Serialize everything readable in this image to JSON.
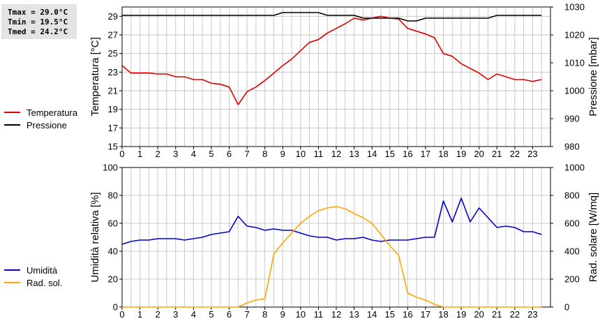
{
  "stats": {
    "tmax": "Tmax = 29.0°C",
    "tmin": "Tmin = 19.5°C",
    "tmed": "Tmed = 24.2°C"
  },
  "colors": {
    "temperatura": "#dd0000",
    "pressione": "#000000",
    "umidita": "#0000cc",
    "radsol": "#ffa500",
    "grid": "#c8c8c8"
  },
  "chart_data": [
    {
      "type": "line",
      "x_ticks": [
        0,
        1,
        2,
        3,
        4,
        5,
        6,
        7,
        8,
        9,
        10,
        11,
        12,
        13,
        14,
        15,
        16,
        17,
        18,
        19,
        20,
        21,
        22,
        23
      ],
      "xlim": [
        0,
        24
      ],
      "y_left": {
        "label": "Temperatura [°C]",
        "ylim": [
          15,
          30
        ],
        "ticks": [
          15,
          17,
          19,
          21,
          23,
          25,
          27,
          29
        ]
      },
      "y_right": {
        "label": "Pressione [mbar]",
        "ylim": [
          980,
          1030
        ],
        "ticks": [
          980,
          990,
          1000,
          1010,
          1020,
          1030
        ]
      },
      "legend": [
        "Temperatura",
        "Pressione"
      ],
      "series": [
        {
          "name": "Temperatura",
          "axis": "left",
          "x": [
            0,
            0.5,
            1,
            1.5,
            2,
            2.5,
            3,
            3.5,
            4,
            4.5,
            5,
            5.5,
            6,
            6.5,
            7,
            7.5,
            8,
            8.5,
            9,
            9.5,
            10,
            10.5,
            11,
            11.5,
            12,
            12.5,
            13,
            13.5,
            14,
            14.5,
            15,
            15.5,
            16,
            16.5,
            17,
            17.5,
            18,
            18.5,
            19,
            19.5,
            20,
            20.5,
            21,
            21.5,
            22,
            22.5,
            23,
            23.5
          ],
          "y": [
            23.7,
            22.9,
            22.9,
            22.9,
            22.8,
            22.8,
            22.5,
            22.5,
            22.2,
            22.2,
            21.8,
            21.7,
            21.4,
            19.5,
            20.9,
            21.4,
            22.1,
            22.9,
            23.7,
            24.4,
            25.3,
            26.2,
            26.5,
            27.2,
            27.7,
            28.2,
            28.8,
            28.6,
            28.8,
            29.0,
            28.8,
            28.7,
            27.7,
            27.4,
            27.1,
            26.7,
            25.0,
            24.7,
            23.9,
            23.4,
            22.9,
            22.2,
            22.8,
            22.5,
            22.2,
            22.2,
            22.0,
            22.2
          ]
        },
        {
          "name": "Pressione",
          "axis": "right",
          "x": [
            0,
            8.5,
            9,
            11,
            11.5,
            13,
            13.5,
            15.5,
            16,
            16.5,
            17,
            20.5,
            21,
            23.5
          ],
          "y": [
            1027,
            1027,
            1028,
            1028,
            1027,
            1027,
            1026,
            1026,
            1025,
            1025,
            1026,
            1026,
            1027,
            1027
          ]
        }
      ]
    },
    {
      "type": "line",
      "x_ticks": [
        0,
        1,
        2,
        3,
        4,
        5,
        6,
        7,
        8,
        9,
        10,
        11,
        12,
        13,
        14,
        15,
        16,
        17,
        18,
        19,
        20,
        21,
        22,
        23
      ],
      "xlim": [
        0,
        24
      ],
      "y_left": {
        "label": "Umidità relativa [%]",
        "ylim": [
          0,
          100
        ],
        "ticks": [
          0,
          20,
          40,
          60,
          80,
          100
        ]
      },
      "y_right": {
        "label": "Rad. solare [W/mq]",
        "ylim": [
          0,
          1000
        ],
        "ticks": [
          0,
          200,
          400,
          600,
          800,
          1000
        ]
      },
      "legend": [
        "Umidità",
        "Rad. sol."
      ],
      "series": [
        {
          "name": "Umidità",
          "axis": "left",
          "x": [
            0,
            0.5,
            1,
            1.5,
            2,
            2.5,
            3,
            3.5,
            4,
            4.5,
            5,
            5.5,
            6,
            6.5,
            7,
            7.5,
            8,
            8.5,
            9,
            9.5,
            10,
            10.5,
            11,
            11.5,
            12,
            12.5,
            13,
            13.5,
            14,
            14.5,
            15,
            15.5,
            16,
            16.5,
            17,
            17.5,
            18,
            18.5,
            19,
            19.5,
            20,
            20.5,
            21,
            21.5,
            22,
            22.5,
            23,
            23.5
          ],
          "y": [
            45,
            47,
            48,
            48,
            49,
            49,
            49,
            48,
            49,
            50,
            52,
            53,
            54,
            65,
            58,
            57,
            55,
            56,
            55,
            55,
            53,
            51,
            50,
            50,
            48,
            49,
            49,
            50,
            48,
            47,
            48,
            48,
            48,
            49,
            50,
            50,
            76,
            61,
            78,
            61,
            71,
            64,
            57,
            58,
            57,
            54,
            54,
            52
          ]
        },
        {
          "name": "Rad. sol.",
          "axis": "right",
          "x": [
            0,
            6.5,
            7,
            7.5,
            8,
            8.5,
            9,
            9.5,
            10,
            10.5,
            11,
            11.5,
            12,
            12.5,
            13,
            13.5,
            14,
            14.5,
            15,
            15.5,
            16,
            16.5,
            17,
            17.5,
            18,
            23.5
          ],
          "y": [
            0,
            0,
            30,
            50,
            60,
            380,
            460,
            530,
            600,
            650,
            690,
            710,
            720,
            705,
            670,
            640,
            600,
            520,
            440,
            370,
            100,
            70,
            50,
            20,
            0,
            0
          ]
        }
      ]
    }
  ]
}
